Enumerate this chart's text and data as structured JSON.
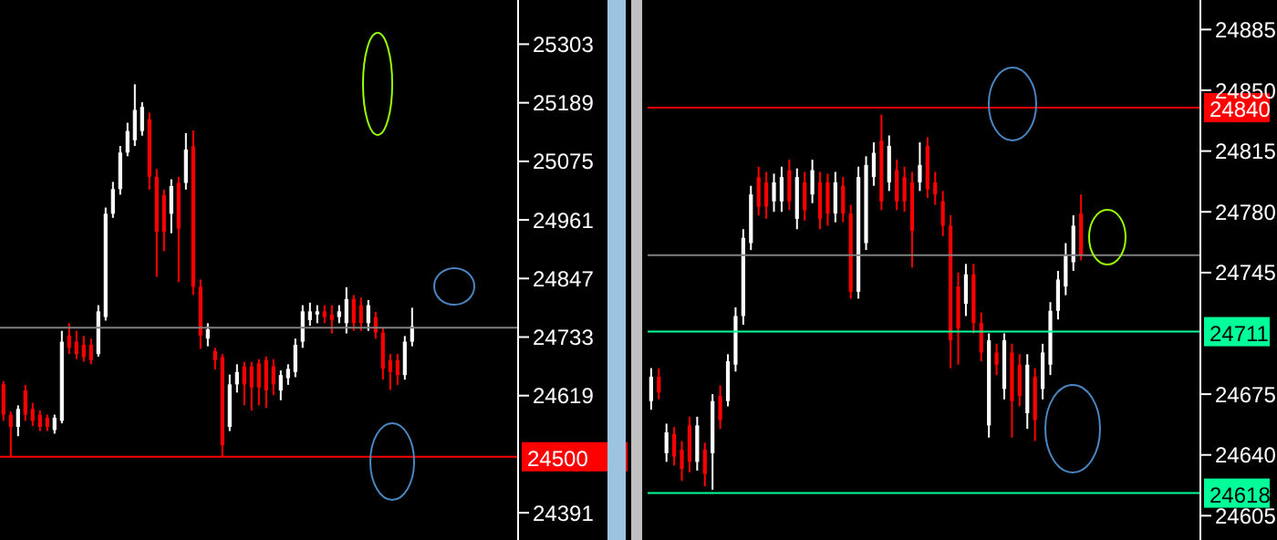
{
  "chart_data": [
    {
      "type": "candlestick",
      "tick_labels": "y",
      "ylim": [
        24338,
        25389
      ],
      "colors": [
        "#ff0000",
        "#ff0000",
        "#ffffff",
        "#ff0000",
        "#ff0000",
        "#ff0000",
        "#ff0000",
        "#ffffff",
        "#ffffff",
        "#ff0000",
        "#ff0000",
        "#ff0000",
        "#ff0000",
        "#ffffff",
        "#ffffff",
        "#ffffff",
        "#ffffff",
        "#ffffff",
        "#ffffff",
        "#ffffff",
        "#ff0000",
        "#ff0000",
        "#ff0000",
        "#ffffff",
        "#ff0000",
        "#ffffff",
        "#ff0000",
        "#ff0000",
        "#ffffff",
        "#ff0000",
        "#ff0000",
        "#ffffff",
        "#ffffff",
        "#ff0000",
        "#ff0000",
        "#ff0000",
        "#ff0000",
        "#ff0000",
        "#ffffff",
        "#ffffff",
        "#ffffff",
        "#ffffff",
        "#ffffff",
        "#ffffff",
        "#ff0000",
        "#ff0000",
        "#ffffff",
        "#ffffff",
        "#ff0000",
        "#ff0000",
        "#ffffff",
        "#ff0000",
        "#ff0000",
        "#ff0000",
        "#ff0000",
        "#ffffff",
        "#ffffff",
        null,
        null,
        null,
        null,
        null,
        null,
        null,
        null,
        null,
        null,
        null,
        null,
        null,
        null
      ],
      "yticks": [
        25303,
        25189,
        25075,
        24961,
        24847,
        24733,
        24619,
        24391
      ],
      "categories": [
        null,
        null,
        null,
        null,
        null,
        null,
        null,
        null,
        null,
        null,
        null,
        null,
        null,
        null,
        null,
        null,
        null,
        null,
        null,
        null,
        null,
        null,
        null,
        null,
        null,
        null,
        null,
        null,
        null,
        null,
        null,
        null,
        null,
        null,
        null,
        null,
        null,
        null,
        null,
        null,
        null,
        null,
        null,
        null,
        null,
        null,
        null,
        null,
        null,
        null,
        null,
        null,
        null,
        null,
        null,
        null,
        null,
        null,
        null,
        null,
        null,
        null,
        null,
        null,
        null,
        null,
        null,
        null,
        null,
        null,
        null
      ],
      "ohlc": [
        [
          24641,
          24647,
          24570,
          24582
        ],
        [
          24582,
          24588,
          24500,
          24558
        ],
        [
          24558,
          24600,
          24540,
          24593
        ],
        [
          24629,
          24640,
          24570,
          24582
        ],
        [
          24593,
          24605,
          24560,
          24570
        ],
        [
          24582,
          24590,
          24550,
          24558
        ],
        [
          24576,
          24582,
          24550,
          24558
        ],
        [
          24552,
          24582,
          24545,
          24576
        ],
        [
          24570,
          24745,
          24565,
          24724
        ],
        [
          24736,
          24760,
          24700,
          24712
        ],
        [
          24724,
          24745,
          24690,
          24700
        ],
        [
          24718,
          24735,
          24685,
          24694
        ],
        [
          24718,
          24730,
          24680,
          24688
        ],
        [
          24700,
          24795,
          24695,
          24783
        ],
        [
          24772,
          24985,
          24765,
          24973
        ],
        [
          24973,
          25035,
          24965,
          25021
        ],
        [
          25021,
          25105,
          25010,
          25092
        ],
        [
          25092,
          25150,
          25085,
          25134
        ],
        [
          25116,
          25225,
          25105,
          25175
        ],
        [
          25134,
          25190,
          25125,
          25181
        ],
        [
          25157,
          25170,
          25020,
          25045
        ],
        [
          25045,
          25060,
          24850,
          24938
        ],
        [
          25009,
          25020,
          24900,
          24938
        ],
        [
          24973,
          25040,
          24935,
          25027
        ],
        [
          25033,
          25045,
          24840,
          24944
        ],
        [
          25033,
          25130,
          25020,
          25098
        ],
        [
          25104,
          25135,
          24815,
          24831
        ],
        [
          24831,
          24845,
          24710,
          24736
        ],
        [
          24730,
          24760,
          24715,
          24748
        ],
        [
          24706,
          24712,
          24670,
          24688
        ],
        [
          24694,
          24700,
          24500,
          24522
        ],
        [
          24558,
          24660,
          24550,
          24641
        ],
        [
          24641,
          24680,
          24625,
          24665
        ],
        [
          24676,
          24685,
          24600,
          24641
        ],
        [
          24676,
          24685,
          24590,
          24635
        ],
        [
          24682,
          24690,
          24600,
          24635
        ],
        [
          24688,
          24695,
          24595,
          24629
        ],
        [
          24676,
          24690,
          24620,
          24641
        ],
        [
          24629,
          24668,
          24610,
          24659
        ],
        [
          24653,
          24680,
          24640,
          24671
        ],
        [
          24665,
          24730,
          24655,
          24718
        ],
        [
          24724,
          24795,
          24712,
          24783
        ],
        [
          24766,
          24800,
          24755,
          24783
        ],
        [
          24777,
          24795,
          24760,
          24783
        ],
        [
          24783,
          24795,
          24760,
          24772
        ],
        [
          24777,
          24795,
          24740,
          24766
        ],
        [
          24772,
          24795,
          24760,
          24783
        ],
        [
          24760,
          24830,
          24740,
          24807
        ],
        [
          24807,
          24815,
          24745,
          24760
        ],
        [
          24795,
          24810,
          24745,
          24760
        ],
        [
          24760,
          24805,
          24745,
          24795
        ],
        [
          24772,
          24782,
          24730,
          24742
        ],
        [
          24742,
          24750,
          24650,
          24671
        ],
        [
          24688,
          24700,
          24630,
          24665
        ],
        [
          24688,
          24700,
          24640,
          24659
        ],
        [
          24659,
          24735,
          24650,
          24724
        ],
        [
          24724,
          24790,
          24715,
          24754
        ],
        null,
        null,
        null,
        null,
        null,
        null,
        null,
        null,
        null,
        null,
        null,
        null,
        null,
        null
      ],
      "ref_lines": [
        {
          "axis": "y",
          "value": 24500,
          "label": "24500",
          "color": "#ff0000"
        },
        {
          "axis": "y",
          "value": 24751,
          "label": null,
          "color": "#808080"
        }
      ]
    },
    {
      "type": "candlestick",
      "tick_labels": "y",
      "ylim": [
        24591,
        24902
      ],
      "colors": [
        "#ffffff",
        "#ff0000",
        "#ffffff",
        "#ff0000",
        "#ff0000",
        "#ff0000",
        "#ffffff",
        "#ff0000",
        "#ffffff",
        "#ff0000",
        "#ffffff",
        "#ffffff",
        "#ffffff",
        "#ffffff",
        "#ff0000",
        "#ff0000",
        "#ffffff",
        "#ffffff",
        "#ff0000",
        "#ffffff",
        "#ff0000",
        "#ffffff",
        "#ff0000",
        "#ff0000",
        "#ffffff",
        "#ff0000",
        "#ff0000",
        "#ffffff",
        "#ffffff",
        "#ffffff",
        "#ff0000",
        "#ffffff",
        "#ff0000",
        "#ff0000",
        "#ff0000",
        "#ffffff",
        "#ff0000",
        "#ff0000",
        "#ff0000",
        "#ff0000",
        "#ff0000",
        "#ffffff",
        "#ff0000",
        "#ff0000",
        "#ffffff",
        "#ff0000",
        "#ffffff",
        "#ff0000",
        "#ff0000",
        "#ffffff",
        "#ff0000",
        "#ffffff",
        "#ffffff",
        "#ffffff",
        "#ffffff",
        "#ffffff",
        "#ff0000",
        null,
        null,
        null,
        null,
        null,
        null,
        null,
        null,
        null,
        null,
        null,
        null,
        null,
        null,
        null
      ],
      "yticks": [
        24885,
        24850,
        24815,
        24780,
        24745,
        24675,
        24640,
        24605
      ],
      "categories": [
        null,
        null,
        null,
        null,
        null,
        null,
        null,
        null,
        null,
        null,
        null,
        null,
        null,
        null,
        null,
        null,
        null,
        null,
        null,
        null,
        null,
        null,
        null,
        null,
        null,
        null,
        null,
        null,
        null,
        null,
        null,
        null,
        null,
        null,
        null,
        null,
        null,
        null,
        null,
        null,
        null,
        null,
        null,
        null,
        null,
        null,
        null,
        null,
        null,
        null,
        null,
        null,
        null,
        null,
        null,
        null,
        null,
        null,
        null,
        null,
        null,
        null,
        null,
        null,
        null,
        null,
        null,
        null,
        null,
        null,
        null,
        null
      ],
      "ohlc": [
        [
          24671,
          24690,
          24666,
          24685
        ],
        [
          24685,
          24690,
          24672,
          24676
        ],
        [
          24641,
          24658,
          24636,
          24653
        ],
        [
          24652,
          24656,
          24634,
          24639
        ],
        [
          24643,
          24648,
          24625,
          24632
        ],
        [
          24657,
          24662,
          24630,
          24636
        ],
        [
          24636,
          24662,
          24631,
          24657
        ],
        [
          24643,
          24647,
          24622,
          24629
        ],
        [
          24641,
          24675,
          24620,
          24671
        ],
        [
          24674,
          24680,
          24655,
          24660
        ],
        [
          24671,
          24698,
          24668,
          24694
        ],
        [
          24692,
          24725,
          24688,
          24720
        ],
        [
          24720,
          24770,
          24715,
          24765
        ],
        [
          24762,
          24795,
          24758,
          24790
        ],
        [
          24800,
          24806,
          24778,
          24783
        ],
        [
          24797,
          24803,
          24776,
          24783
        ],
        [
          24786,
          24802,
          24780,
          24797
        ],
        [
          24786,
          24806,
          24780,
          24800
        ],
        [
          24804,
          24810,
          24781,
          24786
        ],
        [
          24776,
          24805,
          24770,
          24800
        ],
        [
          24797,
          24803,
          24775,
          24781
        ],
        [
          24790,
          24810,
          24785,
          24804
        ],
        [
          24797,
          24803,
          24770,
          24776
        ],
        [
          24797,
          24802,
          24772,
          24779
        ],
        [
          24779,
          24803,
          24774,
          24797
        ],
        [
          24795,
          24800,
          24774,
          24779
        ],
        [
          24779,
          24784,
          24730,
          24734
        ],
        [
          24734,
          24806,
          24730,
          24800
        ],
        [
          24762,
          24812,
          24758,
          24807
        ],
        [
          24800,
          24820,
          24795,
          24814
        ],
        [
          24821,
          24836,
          24781,
          24786
        ],
        [
          24797,
          24824,
          24792,
          24818
        ],
        [
          24804,
          24810,
          24781,
          24786
        ],
        [
          24800,
          24806,
          24780,
          24786
        ],
        [
          24797,
          24803,
          24748,
          24769
        ],
        [
          24797,
          24820,
          24792,
          24807
        ],
        [
          24818,
          24823,
          24788,
          24793
        ],
        [
          24797,
          24803,
          24784,
          24790
        ],
        [
          24786,
          24792,
          24766,
          24772
        ],
        [
          24772,
          24778,
          24690,
          24706
        ],
        [
          24737,
          24745,
          24692,
          24713
        ],
        [
          24727,
          24750,
          24720,
          24744
        ],
        [
          24744,
          24750,
          24710,
          24716
        ],
        [
          24716,
          24722,
          24694,
          24699
        ],
        [
          24657,
          24710,
          24650,
          24706
        ],
        [
          24699,
          24704,
          24686,
          24692
        ],
        [
          24678,
          24710,
          24672,
          24706
        ],
        [
          24699,
          24704,
          24650,
          24671
        ],
        [
          24692,
          24698,
          24668,
          24674
        ],
        [
          24664,
          24698,
          24655,
          24692
        ],
        [
          24685,
          24690,
          24648,
          24660
        ],
        [
          24678,
          24704,
          24672,
          24699
        ],
        [
          24692,
          24728,
          24686,
          24723
        ],
        [
          24723,
          24746,
          24718,
          24741
        ],
        [
          24737,
          24762,
          24732,
          24755
        ],
        [
          24751,
          24778,
          24746,
          24772
        ],
        [
          24779,
          24790,
          24752,
          24755
        ],
        null,
        null,
        null,
        null,
        null,
        null,
        null,
        null,
        null,
        null,
        null,
        null,
        null,
        null,
        null
      ],
      "ref_lines": [
        {
          "axis": "y",
          "value": 24840,
          "label": "24840",
          "color": "#ff0000"
        },
        {
          "axis": "y",
          "value": 24711,
          "label": "24711",
          "color": "#00ff99"
        },
        {
          "axis": "y",
          "value": 24618,
          "label": "24618",
          "color": "#00ff99"
        },
        {
          "axis": "y",
          "value": 24755,
          "label": null,
          "color": "#808080"
        }
      ]
    }
  ]
}
